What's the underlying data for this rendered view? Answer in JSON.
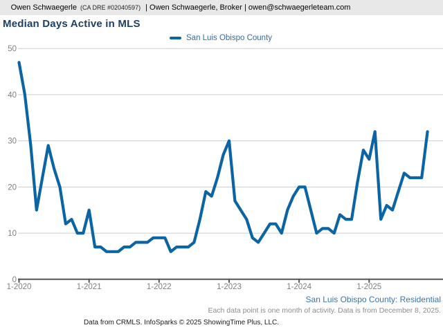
{
  "header": {
    "agent": "Owen Schwaegerle",
    "dre": "(CA DRE #02040597)",
    "rest": "| Owen Schwaegerle, Broker | owen@schwaegerleteam.com"
  },
  "footer": {
    "scope": "San Luis Obispo County: Residential",
    "note": "Each data point is one month of activity. Data is from December 8, 2025.",
    "attribution": "Data from CRMLS. InfoSparks © 2025 ShowingTime Plus, LLC."
  },
  "chart_data": {
    "type": "line",
    "title": "Median Days Active in MLS",
    "xlabel": "",
    "ylabel": "",
    "ylim": [
      0,
      50
    ],
    "ytick_step": 10,
    "grid": "horizontal",
    "legend_position": "top-center",
    "xticks": [
      "1-2020",
      "1-2021",
      "1-2022",
      "1-2023",
      "1-2024",
      "1-2025"
    ],
    "xtick_month_index": [
      0,
      12,
      24,
      36,
      48,
      60
    ],
    "months": [
      "2020-01",
      "2020-02",
      "2020-03",
      "2020-04",
      "2020-05",
      "2020-06",
      "2020-07",
      "2020-08",
      "2020-09",
      "2020-10",
      "2020-11",
      "2020-12",
      "2021-01",
      "2021-02",
      "2021-03",
      "2021-04",
      "2021-05",
      "2021-06",
      "2021-07",
      "2021-08",
      "2021-09",
      "2021-10",
      "2021-11",
      "2021-12",
      "2022-01",
      "2022-02",
      "2022-03",
      "2022-04",
      "2022-05",
      "2022-06",
      "2022-07",
      "2022-08",
      "2022-09",
      "2022-10",
      "2022-11",
      "2022-12",
      "2023-01",
      "2023-02",
      "2023-03",
      "2023-04",
      "2023-05",
      "2023-06",
      "2023-07",
      "2023-08",
      "2023-09",
      "2023-10",
      "2023-11",
      "2023-12",
      "2024-01",
      "2024-02",
      "2024-03",
      "2024-04",
      "2024-05",
      "2024-06",
      "2024-07",
      "2024-08",
      "2024-09",
      "2024-10",
      "2024-11",
      "2024-12",
      "2025-01",
      "2025-02",
      "2025-03",
      "2025-04",
      "2025-05",
      "2025-06",
      "2025-07",
      "2025-08",
      "2025-09",
      "2025-10",
      "2025-11"
    ],
    "series": [
      {
        "name": "San Luis Obispo County",
        "color": "#0b64a4",
        "values": [
          47,
          40,
          29,
          15,
          22,
          29,
          24,
          20,
          12,
          13,
          10,
          10,
          15,
          7,
          7,
          6,
          6,
          6,
          7,
          7,
          8,
          8,
          8,
          9,
          9,
          9,
          6,
          7,
          7,
          7,
          8,
          13,
          19,
          18,
          22,
          27,
          30,
          17,
          15,
          13,
          9,
          8,
          10,
          12,
          12,
          10,
          15,
          18,
          20,
          20,
          15,
          10,
          11,
          11,
          10,
          14,
          13,
          13,
          21,
          28,
          26,
          32,
          13,
          16,
          15,
          19,
          23,
          22,
          22,
          22,
          32
        ]
      }
    ]
  }
}
